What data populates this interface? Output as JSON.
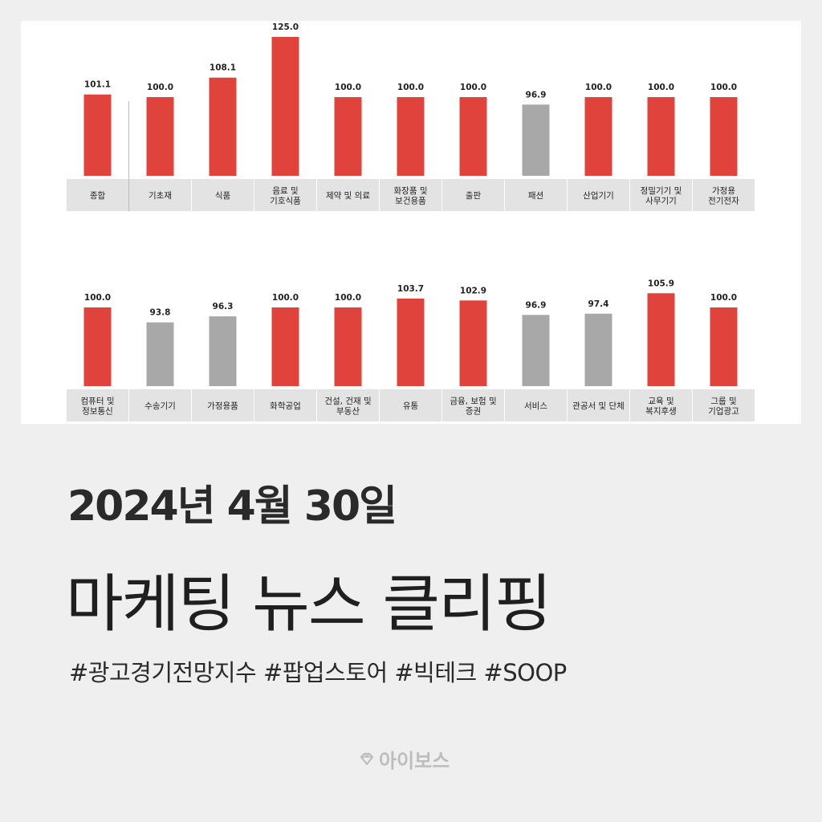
{
  "chart_data": [
    {
      "type": "bar",
      "categories": [
        "종합",
        "기초재",
        "식품",
        "음료 및\n기호식품",
        "제약 및 의료",
        "화장품 및\n보건용품",
        "출판",
        "패션",
        "산업기기",
        "정밀기기 및\n사무기기",
        "가정용\n전기전자"
      ],
      "values": [
        101.1,
        100.0,
        108.1,
        125.0,
        100.0,
        100.0,
        100.0,
        96.9,
        100.0,
        100.0,
        100.0
      ],
      "value_labels": [
        "101.1",
        "100.0",
        "108.1",
        "125.0",
        "100.0",
        "100.0",
        "100.0",
        "96.9",
        "100.0",
        "100.0",
        "100.0"
      ]
    },
    {
      "type": "bar",
      "categories": [
        "컴퓨터 및\n정보통신",
        "수송기기",
        "가정용품",
        "화학공업",
        "건설, 건재 및\n부동산",
        "유통",
        "금융, 보험 및\n증권",
        "서비스",
        "관공서 및 단체",
        "교육 및\n복지후생",
        "그룹 및\n기업광고"
      ],
      "values": [
        100.0,
        93.8,
        96.3,
        100.0,
        100.0,
        103.7,
        102.9,
        96.9,
        97.4,
        105.9,
        100.0
      ],
      "value_labels": [
        "100.0",
        "93.8",
        "96.3",
        "100.0",
        "100.0",
        "103.7",
        "102.9",
        "96.9",
        "97.4",
        "105.9",
        "100.0"
      ]
    }
  ],
  "colors": {
    "above_or_equal": "#e0433b",
    "below": "#a8a8a8",
    "label_box": "#e3e3e3"
  },
  "title": {
    "date": "2024년 4월 30일",
    "main": "마케팅 뉴스 클리핑"
  },
  "hashtags": "#광고경기전망지수 #팝업스토어 #빅테크 #SOOP",
  "brand": {
    "name": "아이보스",
    "icon": "diamond-logo-icon"
  }
}
